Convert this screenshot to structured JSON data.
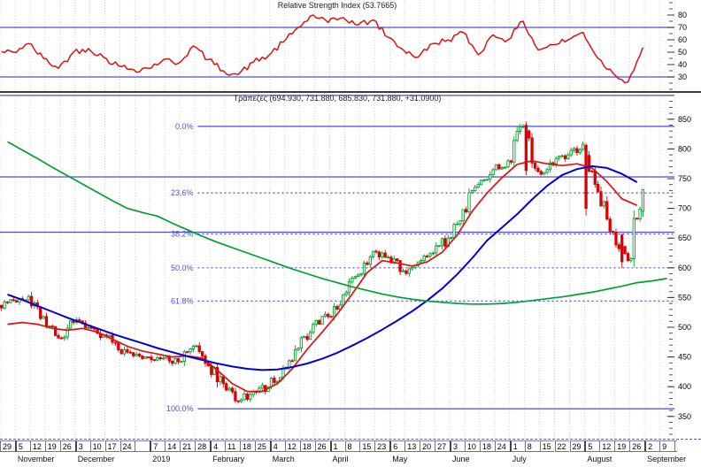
{
  "colors": {
    "rsi_line": "#e01010",
    "ma_fast": "#e01010",
    "ma_medium": "#0000dd",
    "ma_slow": "#00a030",
    "candle_up": "#00a030",
    "candle_down": "#dd0000",
    "level_line": "#4d4dd8",
    "grid": "#d4d4d4",
    "axis_text": "#000000"
  },
  "chart_data": [
    {
      "panel": "rsi",
      "type": "line",
      "title": "Relative Strength Index (53.7665)",
      "indicator": "Relative Strength Index",
      "last_value": 53.7665,
      "ylim": [
        18,
        92
      ],
      "yticks": [
        30,
        40,
        50,
        60,
        70,
        80
      ],
      "minor_tick_step": 5,
      "hlines": [
        70,
        30
      ],
      "weekly_values": [
        50,
        57,
        45,
        37,
        50,
        53,
        46,
        39,
        36,
        37,
        44,
        41,
        55,
        44,
        35,
        32,
        42,
        47,
        58,
        70,
        80,
        74,
        78,
        72,
        76,
        62,
        52,
        46,
        57,
        60,
        66,
        48,
        64,
        60,
        75,
        52,
        56,
        60,
        66,
        45,
        33,
        26,
        53.77
      ]
    },
    {
      "panel": "price",
      "type": "candlestick",
      "title": "Τράπεζες (694.930, 731.880, 685.830, 731.880, +31.0900)",
      "symbol": "Τράπεζες",
      "last_bar": {
        "open": 694.93,
        "high": 731.88,
        "low": 685.83,
        "close": 731.88,
        "change": "+31.0900"
      },
      "ylim": [
        317,
        896
      ],
      "yticks": [
        350,
        400,
        450,
        500,
        550,
        600,
        650,
        700,
        750,
        800,
        850
      ],
      "minor_tick_step": 10,
      "hlines": [
        890,
        753,
        660
      ],
      "fibonacci": {
        "start_week": 13.2,
        "levels": [
          {
            "label": "0.0%",
            "value": 838,
            "style": "solid"
          },
          {
            "label": "23.6%",
            "value": 726,
            "style": "dotted"
          },
          {
            "label": "38.2%",
            "value": 657,
            "style": "dotted"
          },
          {
            "label": "50.0%",
            "value": 600,
            "style": "dotted"
          },
          {
            "label": "61.8%",
            "value": 544,
            "style": "dotted"
          },
          {
            "label": "100.0%",
            "value": 363,
            "style": "solid"
          }
        ]
      },
      "weekly_closes": [
        545,
        552,
        518,
        482,
        508,
        500,
        487,
        462,
        452,
        450,
        448,
        442,
        468,
        435,
        405,
        375,
        392,
        400,
        430,
        465,
        505,
        518,
        555,
        588,
        628,
        618,
        595,
        610,
        625,
        650,
        698,
        740,
        765,
        780,
        838,
        762,
        775,
        790,
        808,
        728,
        660,
        612,
        731.88
      ],
      "notable_bars": [
        {
          "week": 35,
          "day": 0,
          "open": 840,
          "high": 846,
          "low": 756,
          "close": 764
        },
        {
          "week": 39,
          "day": 0,
          "open": 806,
          "high": 810,
          "low": 688,
          "close": 700
        },
        {
          "week": 41,
          "day": 2,
          "open": 655,
          "high": 658,
          "low": 600,
          "close": 610
        },
        {
          "week": 42,
          "day": 4,
          "open": 694.93,
          "high": 731.88,
          "low": 685.83,
          "close": 731.88
        }
      ],
      "overlays": [
        {
          "name": "ma-fast",
          "color_key": "ma_fast",
          "weekly_values": [
            505,
            508,
            505,
            498,
            495,
            498,
            492,
            480,
            468,
            460,
            455,
            450,
            452,
            448,
            428,
            405,
            392,
            392,
            405,
            430,
            463,
            492,
            522,
            556,
            592,
            612,
            608,
            603,
            610,
            626,
            655,
            695,
            726,
            752,
            774,
            780,
            775,
            772,
            775,
            768,
            745,
            716,
            705
          ]
        },
        {
          "name": "ma-medium",
          "color_key": "ma_medium",
          "weekly_values": [
            555,
            546,
            536,
            526,
            516,
            507,
            498,
            489,
            481,
            473,
            465,
            458,
            451,
            445,
            439,
            434,
            430,
            428,
            429,
            433,
            439,
            447,
            457,
            469,
            482,
            496,
            511,
            527,
            545,
            565,
            589,
            616,
            646,
            668,
            690,
            715,
            738,
            756,
            766,
            771,
            768,
            758,
            744
          ]
        },
        {
          "name": "ma-slow",
          "color_key": "ma_slow",
          "weekly_values": [
            812,
            798,
            784,
            769,
            755,
            741,
            727,
            713,
            700,
            693,
            687,
            675,
            664,
            653,
            643,
            634,
            625,
            616,
            607,
            598,
            590,
            582,
            575,
            568,
            562,
            556,
            551,
            547,
            544,
            542,
            540,
            539,
            539,
            540,
            542,
            545,
            548,
            551,
            555,
            559,
            564,
            569,
            575,
            578,
            582
          ]
        }
      ]
    }
  ],
  "x_axis": {
    "day_labels": [
      "29",
      "5",
      "12",
      "19",
      "26",
      "3",
      "10",
      "17",
      "24",
      "",
      "7",
      "14",
      "21",
      "28",
      "4",
      "11",
      "18",
      "25",
      "4",
      "12",
      "18",
      "26",
      "1",
      "8",
      "15",
      "23",
      "6",
      "13",
      "20",
      "27",
      "3",
      "10",
      "18",
      "24",
      "1",
      "8",
      "15",
      "22",
      "29",
      "5",
      "12",
      "19",
      "26",
      "2",
      "9"
    ],
    "months": [
      {
        "label": "November",
        "start": 1,
        "span": 4
      },
      {
        "label": "December",
        "start": 5,
        "span": 5
      },
      {
        "label": "2019",
        "start": 10,
        "span": 4
      },
      {
        "label": "February",
        "start": 14,
        "span": 4
      },
      {
        "label": "March",
        "start": 18,
        "span": 4
      },
      {
        "label": "April",
        "start": 22,
        "span": 4
      },
      {
        "label": "May",
        "start": 26,
        "span": 4
      },
      {
        "label": "June",
        "start": 30,
        "span": 4
      },
      {
        "label": "July",
        "start": 34,
        "span": 5
      },
      {
        "label": "August",
        "start": 39,
        "span": 4
      },
      {
        "label": "September",
        "start": 43,
        "span": 2
      }
    ]
  }
}
